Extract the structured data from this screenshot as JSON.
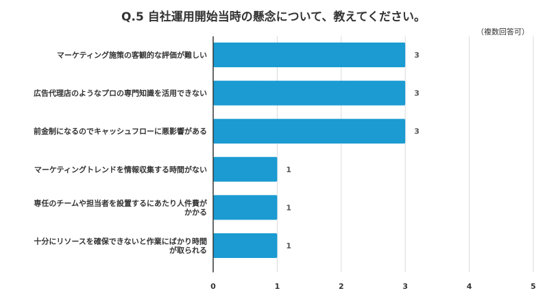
{
  "chart_data": {
    "type": "bar",
    "orientation": "horizontal",
    "title": "Q.5 自社運用開始当時の懸念について、教えてください。",
    "note": "（複数回答可）",
    "categories": [
      [
        "マーケティング施策の客観的な評価が難しい"
      ],
      [
        "広告代理店のようなプロの専門知識を活用できない"
      ],
      [
        "前金制になるのでキャッシュフローに悪影響がある"
      ],
      [
        "マーケティングトレンドを情報収集する時間がない"
      ],
      [
        "専任のチームや担当者を設置するにあたり人件費が",
        "かかる"
      ],
      [
        "十分にリソースを確保できないと作業にばかり時間",
        "が取られる"
      ]
    ],
    "values": [
      3,
      3,
      3,
      1,
      1,
      1
    ],
    "xlim": [
      0,
      5
    ],
    "xticks": [
      0,
      1,
      2,
      3,
      4,
      5
    ],
    "grid": true,
    "colors": {
      "bar": "#1b9bd1",
      "grid": "#d9d9d9",
      "axis": "#333333"
    }
  }
}
